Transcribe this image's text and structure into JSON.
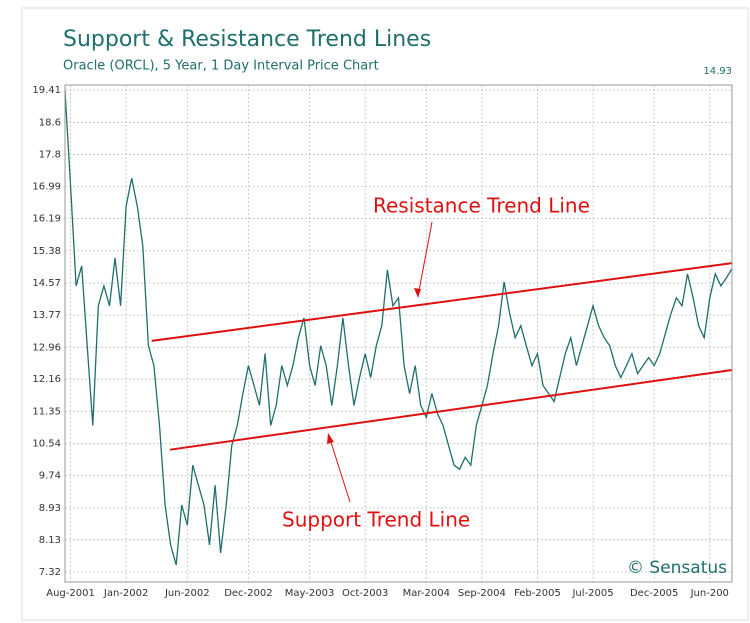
{
  "chart_data": {
    "type": "line",
    "title": "Support & Resistance Trend Lines",
    "subtitle": "Oracle (ORCL), 5 Year, 1 Day Interval Price Chart",
    "watermark": "© Sensatus",
    "series": [
      {
        "name": "ORCL",
        "color": "#1f6f6c",
        "values": [
          19.4,
          17,
          14.5,
          15,
          13,
          11,
          14,
          14.5,
          14,
          15.2,
          14,
          16.5,
          17.2,
          16.5,
          15.5,
          13,
          12.5,
          11,
          9,
          8,
          7.5,
          9,
          8.5,
          10,
          9.5,
          9,
          8,
          9.5,
          7.8,
          9,
          10.5,
          11,
          11.8,
          12.5,
          12,
          11.5,
          12.8,
          11,
          11.5,
          12.5,
          12,
          12.5,
          13.2,
          13.7,
          12.5,
          12,
          13,
          12.5,
          11.5,
          12.5,
          13.7,
          12.5,
          11.5,
          12.2,
          12.8,
          12.2,
          13,
          13.5,
          14.9,
          14,
          14.2,
          12.5,
          11.8,
          12.5,
          11.5,
          11.2,
          11.8,
          11.3,
          11,
          10.5,
          10,
          9.9,
          10.2,
          10,
          11,
          11.5,
          12,
          12.8,
          13.5,
          14.6,
          13.8,
          13.2,
          13.5,
          13,
          12.5,
          12.8,
          12,
          11.8,
          11.6,
          12.2,
          12.8,
          13.2,
          12.5,
          13,
          13.5,
          14,
          13.5,
          13.2,
          13,
          12.5,
          12.2,
          12.5,
          12.8,
          12.3,
          12.5,
          12.7,
          12.5,
          12.8,
          13.3,
          13.8,
          14.2,
          14,
          14.8,
          14.2,
          13.5,
          13.2,
          14.2,
          14.8,
          14.5,
          14.7,
          14.93
        ]
      }
    ],
    "trend_lines": [
      {
        "name": "Resistance Trend Line",
        "color": "#e01010",
        "x": [
          15.6,
          120
        ],
        "values": [
          13.12,
          15.07
        ]
      },
      {
        "name": "Support Trend Line",
        "color": "#e01010",
        "x": [
          18.9,
          120
        ],
        "values": [
          10.39,
          12.39
        ]
      }
    ],
    "xlim": [
      0,
      120
    ],
    "xticks": [
      {
        "value": 1,
        "label": "Aug-2001"
      },
      {
        "value": 11,
        "label": "Jan-2002"
      },
      {
        "value": 22,
        "label": "Jun-2002"
      },
      {
        "value": 33,
        "label": "Dec-2002"
      },
      {
        "value": 44,
        "label": "May-2003"
      },
      {
        "value": 54,
        "label": "Oct-2003"
      },
      {
        "value": 65,
        "label": "Mar-2004"
      },
      {
        "value": 75,
        "label": "Sep-2004"
      },
      {
        "value": 85,
        "label": "Feb-2005"
      },
      {
        "value": 95,
        "label": "Jul-2005"
      },
      {
        "value": 106,
        "label": "Dec-2005"
      },
      {
        "value": 116,
        "label": "Jun-200"
      }
    ],
    "ylim": [
      7.07,
      19.54
    ],
    "yticks": [
      7.32,
      8.13,
      8.93,
      9.74,
      10.54,
      11.35,
      12.16,
      12.96,
      13.77,
      14.57,
      15.38,
      16.19,
      16.99,
      17.8,
      18.6,
      19.41
    ],
    "grid": true
  }
}
